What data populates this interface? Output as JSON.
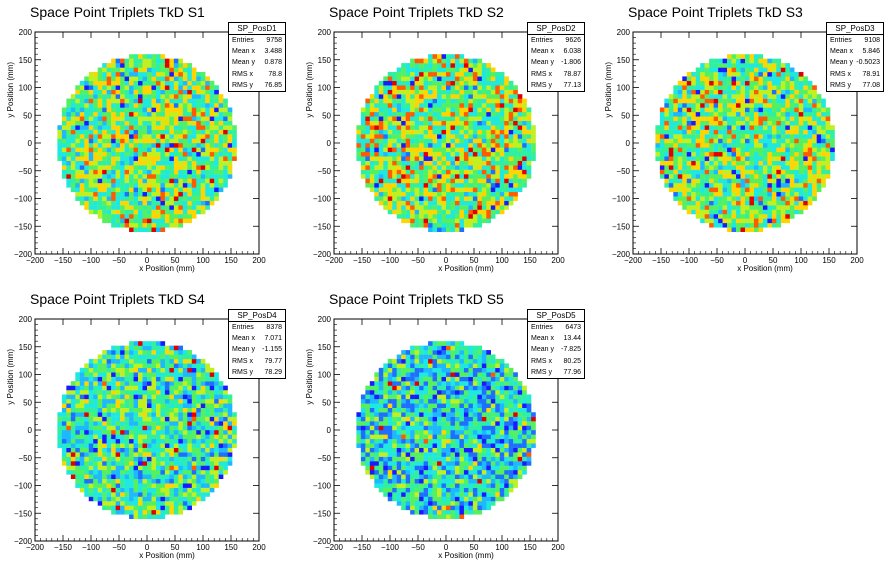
{
  "chart_data": [
    {
      "type": "heatmap",
      "title": "Space Point Triplets TkD S1",
      "xlabel": "x Position (mm)",
      "ylabel": "y Position (mm)",
      "xlim": [
        -200,
        200
      ],
      "ylim": [
        -200,
        200
      ],
      "xticks": [
        "−200",
        "−150",
        "−100",
        "−50",
        "0",
        "50",
        "100",
        "150",
        "200"
      ],
      "yticks": [
        "200",
        "150",
        "100",
        "50",
        "0",
        "−50",
        "−100",
        "−150",
        "−200"
      ],
      "radius": 160,
      "bin": 8,
      "stats": {
        "name": "SP_PosD1",
        "rows": [
          [
            "Entries",
            "9758"
          ],
          [
            "Mean x",
            "3.488"
          ],
          [
            "Mean y",
            "0.878"
          ],
          [
            "RMS x",
            "78.8"
          ],
          [
            "RMS y",
            "76.85"
          ]
        ]
      },
      "seed": 11,
      "level": 0.55
    },
    {
      "type": "heatmap",
      "title": "Space Point Triplets TkD S2",
      "xlabel": "x Position (mm)",
      "ylabel": "y Position (mm)",
      "xlim": [
        -200,
        200
      ],
      "ylim": [
        -200,
        200
      ],
      "xticks": [
        "−200",
        "−150",
        "−100",
        "−50",
        "0",
        "50",
        "100",
        "150",
        "200"
      ],
      "yticks": [
        "200",
        "150",
        "100",
        "50",
        "0",
        "−50",
        "−100",
        "−150",
        "−200"
      ],
      "radius": 160,
      "bin": 8,
      "stats": {
        "name": "SP_PosD2",
        "rows": [
          [
            "Entries",
            "9626"
          ],
          [
            "Mean x",
            "6.038"
          ],
          [
            "Mean y",
            "-1.806"
          ],
          [
            "RMS x",
            "78.87"
          ],
          [
            "RMS y",
            "77.13"
          ]
        ]
      },
      "seed": 23,
      "level": 0.58
    },
    {
      "type": "heatmap",
      "title": "Space Point Triplets TkD S3",
      "xlabel": "x Position (mm)",
      "ylabel": "y Position (mm)",
      "xlim": [
        -200,
        200
      ],
      "ylim": [
        -200,
        200
      ],
      "xticks": [
        "−200",
        "−150",
        "−100",
        "−50",
        "0",
        "50",
        "100",
        "150",
        "200"
      ],
      "yticks": [
        "200",
        "150",
        "100",
        "50",
        "0",
        "−50",
        "−100",
        "−150",
        "−200"
      ],
      "radius": 160,
      "bin": 8,
      "stats": {
        "name": "SP_PosD3",
        "rows": [
          [
            "Entries",
            "9108"
          ],
          [
            "Mean x",
            "5.846"
          ],
          [
            "Mean y",
            "-0.5023"
          ],
          [
            "RMS x",
            "78.91"
          ],
          [
            "RMS y",
            "77.08"
          ]
        ]
      },
      "seed": 37,
      "level": 0.56
    },
    {
      "type": "heatmap",
      "title": "Space Point Triplets TkD S4",
      "xlabel": "x Position (mm)",
      "ylabel": "y Position (mm)",
      "xlim": [
        -200,
        200
      ],
      "ylim": [
        -200,
        200
      ],
      "xticks": [
        "−200",
        "−150",
        "−100",
        "−50",
        "0",
        "50",
        "100",
        "150",
        "200"
      ],
      "yticks": [
        "200",
        "150",
        "100",
        "50",
        "0",
        "−50",
        "−100",
        "−150",
        "−200"
      ],
      "radius": 160,
      "bin": 8,
      "stats": {
        "name": "SP_PosD4",
        "rows": [
          [
            "Entries",
            "8378"
          ],
          [
            "Mean x",
            "7.071"
          ],
          [
            "Mean y",
            "-1.155"
          ],
          [
            "RMS x",
            "79.77"
          ],
          [
            "RMS y",
            "78.29"
          ]
        ]
      },
      "seed": 51,
      "level": 0.45
    },
    {
      "type": "heatmap",
      "title": "Space Point Triplets TkD S5",
      "xlabel": "x Position (mm)",
      "ylabel": "y Position (mm)",
      "xlim": [
        -200,
        200
      ],
      "ylim": [
        -200,
        200
      ],
      "xticks": [
        "−200",
        "−150",
        "−100",
        "−50",
        "0",
        "50",
        "100",
        "150",
        "200"
      ],
      "yticks": [
        "200",
        "150",
        "100",
        "50",
        "0",
        "−50",
        "−100",
        "−150",
        "−200"
      ],
      "radius": 160,
      "bin": 8,
      "stats": {
        "name": "SP_PosD5",
        "rows": [
          [
            "Entries",
            "6473"
          ],
          [
            "Mean x",
            "13.44"
          ],
          [
            "Mean y",
            "-7.825"
          ],
          [
            "RMS x",
            "80.25"
          ],
          [
            "RMS y",
            "77.96"
          ]
        ]
      },
      "seed": 67,
      "level": 0.38
    }
  ],
  "palette": [
    "#1a1aff",
    "#1f6fff",
    "#1fb8ff",
    "#1fe8e0",
    "#2ff0a0",
    "#55f060",
    "#c0f020",
    "#ffd400",
    "#ff5a00",
    "#e00000"
  ]
}
